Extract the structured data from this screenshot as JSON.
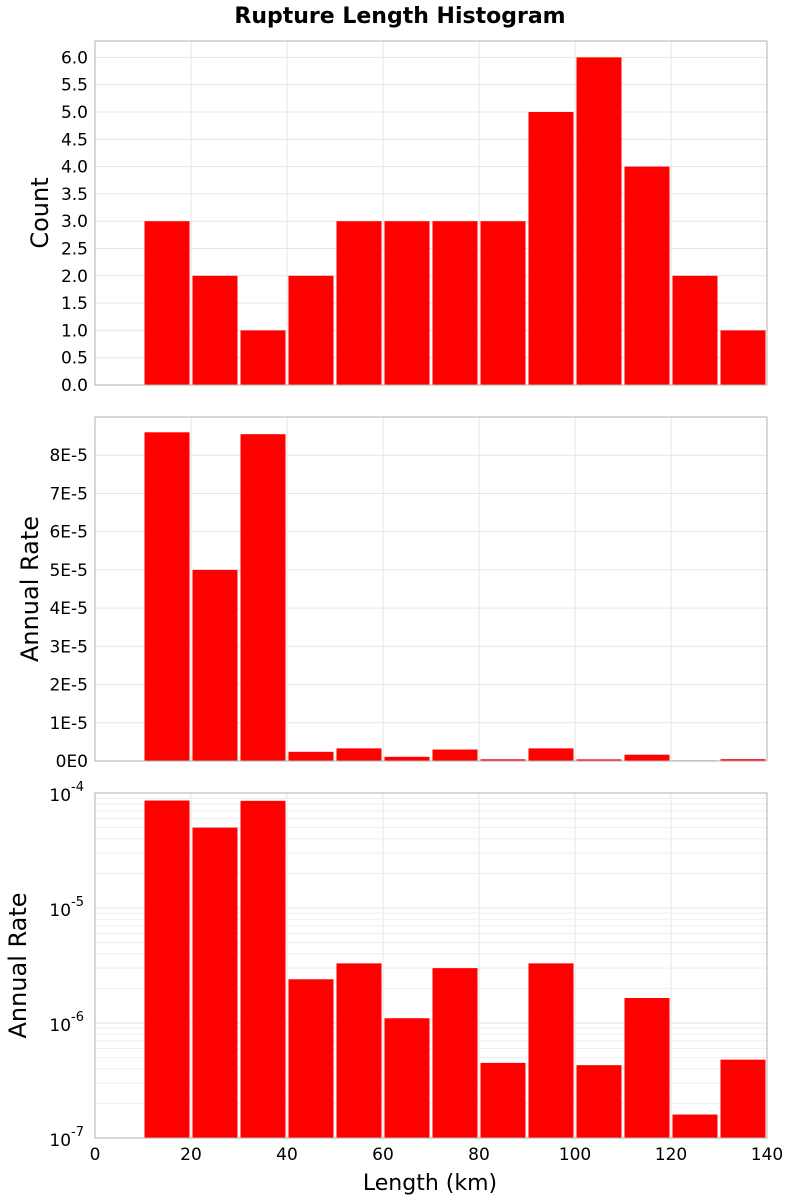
{
  "chart_data": {
    "title": "Rupture Length Histogram",
    "type": "bar",
    "xlabel": "Length (km)",
    "xlim": [
      0,
      140
    ],
    "xticks": [
      0,
      20,
      40,
      60,
      80,
      100,
      120,
      140
    ],
    "bin_width": 10,
    "bins": [
      15,
      25,
      35,
      45,
      55,
      65,
      75,
      85,
      95,
      105,
      115,
      125,
      135
    ],
    "bar_color": "#ff0000",
    "grid": true,
    "panels": [
      {
        "ylabel": "Count",
        "scale": "linear",
        "ylim": [
          0,
          6.3
        ],
        "yticks": [
          "0.0",
          "0.5",
          "1.0",
          "1.5",
          "2.0",
          "2.5",
          "3.0",
          "3.5",
          "4.0",
          "4.5",
          "5.0",
          "5.5",
          "6.0"
        ],
        "values": [
          3,
          2,
          1,
          2,
          3,
          3,
          3,
          3,
          5,
          6,
          4,
          2,
          1
        ]
      },
      {
        "ylabel": "Annual Rate",
        "scale": "linear",
        "ylim": [
          0,
          9e-05
        ],
        "yticks": [
          "0E0",
          "1E-5",
          "2E-5",
          "3E-5",
          "4E-5",
          "5E-5",
          "6E-5",
          "7E-5",
          "8E-5"
        ],
        "values": [
          8.6e-05,
          5e-05,
          8.55e-05,
          2.4e-06,
          3.3e-06,
          1.1e-06,
          3e-06,
          4.5e-07,
          3.3e-06,
          4.3e-07,
          1.65e-06,
          1.6e-07,
          4.8e-07
        ]
      },
      {
        "ylabel": "Annual Rate",
        "scale": "log",
        "ylim": [
          1e-07,
          0.0001
        ],
        "yticks": [
          {
            "base": "10",
            "exp": "-7"
          },
          {
            "base": "10",
            "exp": "-6"
          },
          {
            "base": "10",
            "exp": "-5"
          },
          {
            "base": "10",
            "exp": "-4"
          }
        ],
        "values": [
          8.6e-05,
          5e-05,
          8.55e-05,
          2.4e-06,
          3.3e-06,
          1.1e-06,
          3e-06,
          4.5e-07,
          3.3e-06,
          4.3e-07,
          1.65e-06,
          1.6e-07,
          4.8e-07
        ]
      }
    ]
  }
}
